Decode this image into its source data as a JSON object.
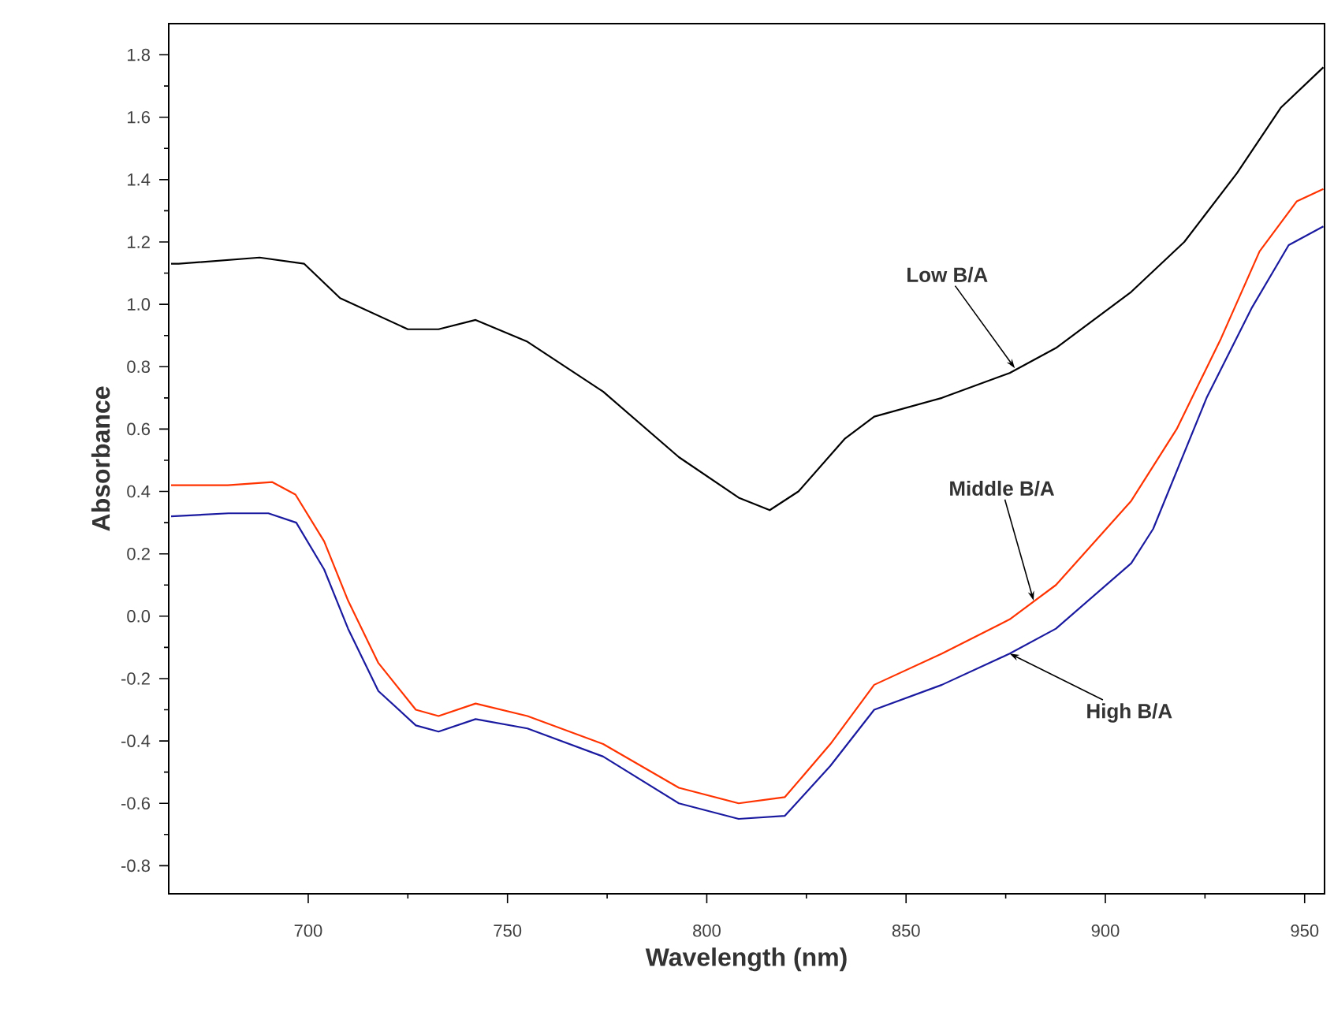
{
  "chart_data": {
    "type": "line",
    "xlabel": "Wavelength (nm)",
    "ylabel": "Absorbance",
    "xlim": [
      665,
      955
    ],
    "ylim": [
      -0.89,
      1.9
    ],
    "xticks": [
      700,
      750,
      800,
      850,
      900,
      950
    ],
    "yticks": [
      {
        "value": -0.8,
        "label": "-0.8"
      },
      {
        "value": -0.6,
        "label": "-0.6"
      },
      {
        "value": -0.4,
        "label": "-0.4"
      },
      {
        "value": -0.2,
        "label": "-0.2"
      },
      {
        "value": 0,
        "label": "0.0"
      },
      {
        "value": 0.2,
        "label": "0.2"
      },
      {
        "value": 0.4,
        "label": "0.4"
      },
      {
        "value": 0.6,
        "label": "0.6"
      },
      {
        "value": 0.8,
        "label": "0.8"
      },
      {
        "value": 1.0,
        "label": "1.0"
      },
      {
        "value": 1.2,
        "label": "1.2"
      },
      {
        "value": 1.4,
        "label": "1.4"
      },
      {
        "value": 1.6,
        "label": "1.6"
      },
      {
        "value": 1.8,
        "label": "1.8"
      }
    ],
    "grid": false,
    "marker": "none",
    "line_style": "solid",
    "series": [
      {
        "color": "#000000",
        "x": [
          665.6,
          667.5,
          687.8,
          699,
          708,
          725,
          732.7,
          742,
          755,
          774,
          793,
          808,
          815.8,
          823,
          834.7,
          842,
          859,
          876,
          887.6,
          906.5,
          919.8,
          933,
          944,
          954.7
        ],
        "values": [
          1.13,
          1.13,
          1.15,
          1.13,
          1.02,
          0.92,
          0.92,
          0.95,
          0.88,
          0.72,
          0.51,
          0.38,
          0.34,
          0.4,
          0.57,
          0.64,
          0.7,
          0.78,
          0.86,
          1.04,
          1.2,
          1.42,
          1.63,
          1.76
        ]
      },
      {
        "color": "#ff3300",
        "x": [
          665.6,
          679.8,
          691,
          696.8,
          704,
          710,
          717.6,
          727,
          732.7,
          742,
          755,
          774,
          793,
          808,
          819.6,
          831,
          842,
          859,
          876,
          887.6,
          906.5,
          917.9,
          929,
          938.7,
          948,
          954.7
        ],
        "values": [
          0.42,
          0.42,
          0.43,
          0.39,
          0.24,
          0.05,
          -0.15,
          -0.3,
          -0.32,
          -0.28,
          -0.32,
          -0.41,
          -0.55,
          -0.6,
          -0.58,
          -0.41,
          -0.22,
          -0.12,
          -0.01,
          0.1,
          0.37,
          0.6,
          0.89,
          1.17,
          1.33,
          1.37
        ]
      },
      {
        "color": "#1a1aa0",
        "x": [
          665.6,
          680,
          690,
          697,
          704,
          710,
          717.6,
          727,
          732.7,
          742,
          755,
          774,
          793,
          808,
          819.6,
          831,
          842,
          859,
          876,
          887.6,
          906.5,
          912,
          925.4,
          936.8,
          946,
          954.7
        ],
        "values": [
          0.32,
          0.33,
          0.33,
          0.3,
          0.15,
          -0.04,
          -0.24,
          -0.35,
          -0.37,
          -0.33,
          -0.36,
          -0.45,
          -0.6,
          -0.65,
          -0.64,
          -0.48,
          -0.3,
          -0.22,
          -0.12,
          -0.04,
          0.17,
          0.28,
          0.7,
          0.99,
          1.19,
          1.25
        ]
      }
    ],
    "annotations": [
      {
        "text": "Low B/A",
        "x": 877.3,
        "y": 0.795
      },
      {
        "text": "Middle B/A",
        "x": 882,
        "y": 0.05
      },
      {
        "text": "High B/A",
        "x": 876,
        "y": -0.12
      }
    ]
  }
}
